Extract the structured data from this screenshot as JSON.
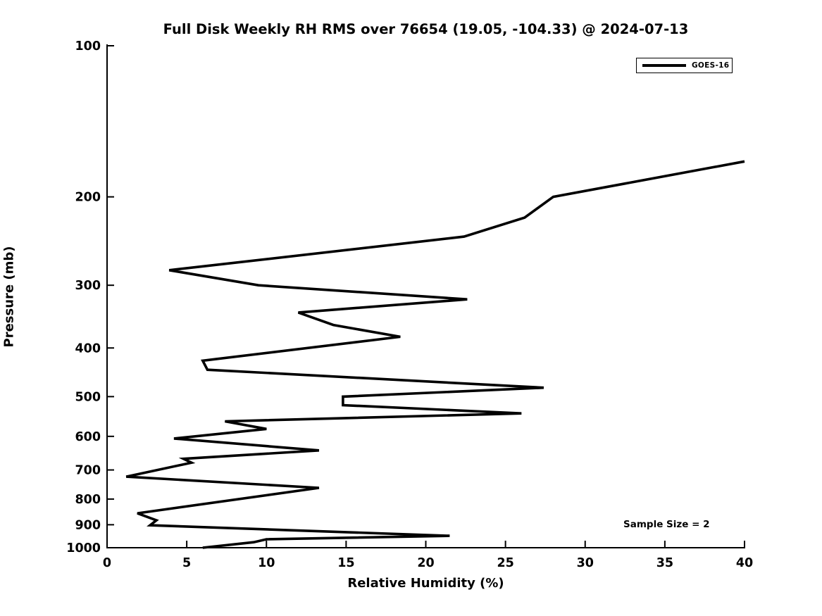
{
  "title": "Full Disk Weekly RH RMS over 76654 (19.05, -104.33) @ 2024-07-13",
  "legend": {
    "label": "GOES-16",
    "line_color": "#000000",
    "position": "top-right"
  },
  "annotation": {
    "sample_size_label": "Sample Size = 2"
  },
  "colors": {
    "line": "#000000",
    "background": "#ffffff",
    "axis": "#000000"
  },
  "chart_data": {
    "type": "line",
    "title": "Full Disk Weekly RH RMS over 76654 (19.05, -104.33) @ 2024-07-13",
    "xlabel": "Relative Humidity (%)",
    "ylabel": "Pressure (mb)",
    "xlim": [
      0,
      40
    ],
    "x_ticks": [
      0,
      5,
      10,
      15,
      20,
      25,
      30,
      35,
      40
    ],
    "ylim": [
      100,
      1000
    ],
    "y_scale": "log",
    "y_axis_inverted": true,
    "y_ticks": [
      100,
      200,
      300,
      400,
      500,
      600,
      700,
      800,
      900,
      1000
    ],
    "grid": false,
    "legend_position": "top-right",
    "series": [
      {
        "name": "GOES-16",
        "color": "#000000",
        "points_rh_pressure": [
          [
            40.0,
            170
          ],
          [
            28.0,
            200
          ],
          [
            26.2,
            220
          ],
          [
            22.4,
            240
          ],
          [
            3.9,
            280
          ],
          [
            9.5,
            300
          ],
          [
            22.6,
            320
          ],
          [
            12.0,
            340
          ],
          [
            14.2,
            360
          ],
          [
            18.4,
            380
          ],
          [
            6.0,
            424
          ],
          [
            6.3,
            442
          ],
          [
            27.4,
            480
          ],
          [
            14.8,
            500
          ],
          [
            14.8,
            520
          ],
          [
            26.0,
            540
          ],
          [
            7.4,
            560
          ],
          [
            10.0,
            580
          ],
          [
            4.2,
            606
          ],
          [
            13.3,
            640
          ],
          [
            4.8,
            665
          ],
          [
            5.3,
            677
          ],
          [
            1.2,
            722
          ],
          [
            13.3,
            760
          ],
          [
            1.9,
            854
          ],
          [
            3.1,
            882
          ],
          [
            2.7,
            902
          ],
          [
            21.5,
            947
          ],
          [
            10.0,
            962
          ],
          [
            9.2,
            975
          ],
          [
            6.0,
            1000
          ]
        ]
      }
    ]
  }
}
